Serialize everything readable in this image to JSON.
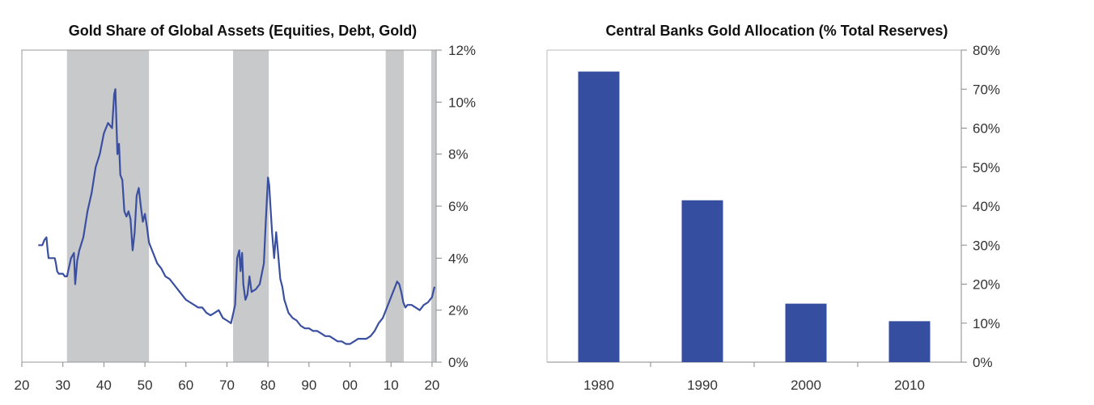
{
  "chart_data": [
    {
      "type": "line",
      "title": "Gold Share of Global Assets (Equities, Debt, Gold)",
      "xlabel": "",
      "ylabel": "",
      "x_range": [
        1920,
        2021
      ],
      "ylim": [
        0,
        12
      ],
      "x_tick_values": [
        1920,
        1930,
        1940,
        1950,
        1960,
        1970,
        1980,
        1990,
        2000,
        2010,
        2020
      ],
      "x_tick_labels": [
        "20",
        "30",
        "40",
        "50",
        "60",
        "70",
        "80",
        "90",
        "00",
        "10",
        "20"
      ],
      "y_tick_values": [
        0,
        2,
        4,
        6,
        8,
        10,
        12
      ],
      "y_tick_labels": [
        "0%",
        "2%",
        "4%",
        "6%",
        "8%",
        "10%",
        "12%"
      ],
      "y_axis_side": "right",
      "shaded_periods": [
        [
          1931,
          1951
        ],
        [
          1971.5,
          1980.2
        ],
        [
          2008.7,
          2013.1
        ],
        [
          2019.8,
          2021
        ]
      ],
      "colors": {
        "line": "#3a4fa0",
        "shade": "#c8c9cb",
        "axis": "#888888"
      },
      "series": [
        {
          "name": "Gold share",
          "x": [
            1924,
            1925,
            1925.5,
            1926,
            1926.3,
            1926.5,
            1927,
            1928,
            1928.3,
            1928.6,
            1929,
            1930,
            1930.5,
            1931,
            1932,
            1932.7,
            1933,
            1933.5,
            1934,
            1935,
            1936,
            1937,
            1938,
            1939,
            1940,
            1941,
            1942,
            1942.5,
            1942.8,
            1943,
            1943.3,
            1943.7,
            1944,
            1944.5,
            1945,
            1945.5,
            1946,
            1946.5,
            1947,
            1947.5,
            1948,
            1948.5,
            1949,
            1949.5,
            1950,
            1950.5,
            1951,
            1952,
            1953,
            1954,
            1955,
            1956,
            1957,
            1958,
            1959,
            1960,
            1961,
            1962,
            1963,
            1964,
            1965,
            1966,
            1967,
            1968,
            1969,
            1970,
            1971,
            1972,
            1972.5,
            1973,
            1973.3,
            1973.7,
            1974,
            1974.5,
            1975,
            1975.5,
            1976,
            1977,
            1978,
            1979,
            1979.5,
            1980,
            1980.3,
            1980.6,
            1981,
            1981.5,
            1982,
            1982.3,
            1983,
            1983.5,
            1984,
            1985,
            1986,
            1987,
            1988,
            1989,
            1990,
            1991,
            1992,
            1993,
            1994,
            1995,
            1996,
            1997,
            1998,
            1999,
            2000,
            2001,
            2002,
            2003,
            2004,
            2005,
            2006,
            2007,
            2008,
            2009,
            2010,
            2011,
            2011.5,
            2012,
            2012.5,
            2013,
            2013.5,
            2014,
            2015,
            2016,
            2017,
            2018,
            2019,
            2020,
            2020.6
          ],
          "y": [
            4.5,
            4.5,
            4.7,
            4.8,
            4.3,
            4.0,
            4.0,
            4.0,
            3.8,
            3.5,
            3.4,
            3.4,
            3.3,
            3.3,
            4.0,
            4.2,
            3.0,
            3.9,
            4.3,
            4.8,
            5.8,
            6.5,
            7.5,
            8.0,
            8.8,
            9.2,
            9.0,
            10.3,
            10.5,
            9.5,
            8.0,
            8.4,
            7.2,
            7.0,
            5.8,
            5.6,
            5.8,
            5.5,
            4.3,
            5.0,
            6.4,
            6.7,
            6.0,
            5.4,
            5.7,
            5.2,
            4.6,
            4.2,
            3.8,
            3.6,
            3.3,
            3.2,
            3.0,
            2.8,
            2.6,
            2.4,
            2.3,
            2.2,
            2.1,
            2.1,
            1.9,
            1.8,
            1.9,
            2.0,
            1.7,
            1.6,
            1.5,
            2.2,
            4.0,
            4.3,
            3.5,
            4.2,
            3.0,
            2.4,
            2.6,
            3.3,
            2.7,
            2.8,
            3.0,
            3.8,
            5.5,
            7.1,
            6.8,
            6.0,
            5.0,
            4.0,
            5.0,
            4.5,
            3.2,
            2.9,
            2.4,
            1.9,
            1.7,
            1.6,
            1.4,
            1.3,
            1.3,
            1.2,
            1.2,
            1.1,
            1.0,
            1.0,
            0.9,
            0.8,
            0.8,
            0.7,
            0.7,
            0.8,
            0.9,
            0.9,
            0.9,
            1.0,
            1.2,
            1.5,
            1.7,
            2.1,
            2.5,
            2.9,
            3.1,
            3.0,
            2.7,
            2.3,
            2.1,
            2.2,
            2.2,
            2.1,
            2.0,
            2.2,
            2.3,
            2.5,
            2.9
          ]
        }
      ]
    },
    {
      "type": "bar",
      "title": "Central Banks Gold Allocation (% Total Reserves)",
      "xlabel": "",
      "ylabel": "",
      "categories": [
        "1980",
        "1990",
        "2000",
        "2010"
      ],
      "values": [
        74.5,
        41.5,
        15,
        10.5
      ],
      "ylim": [
        0,
        80
      ],
      "y_tick_values": [
        0,
        10,
        20,
        30,
        40,
        50,
        60,
        70,
        80
      ],
      "y_tick_labels": [
        "0%",
        "10%",
        "20%",
        "30%",
        "40%",
        "50%",
        "60%",
        "70%",
        "80%"
      ],
      "y_axis_side": "right",
      "colors": {
        "bar": "#354ea0",
        "axis": "#888888"
      }
    }
  ]
}
